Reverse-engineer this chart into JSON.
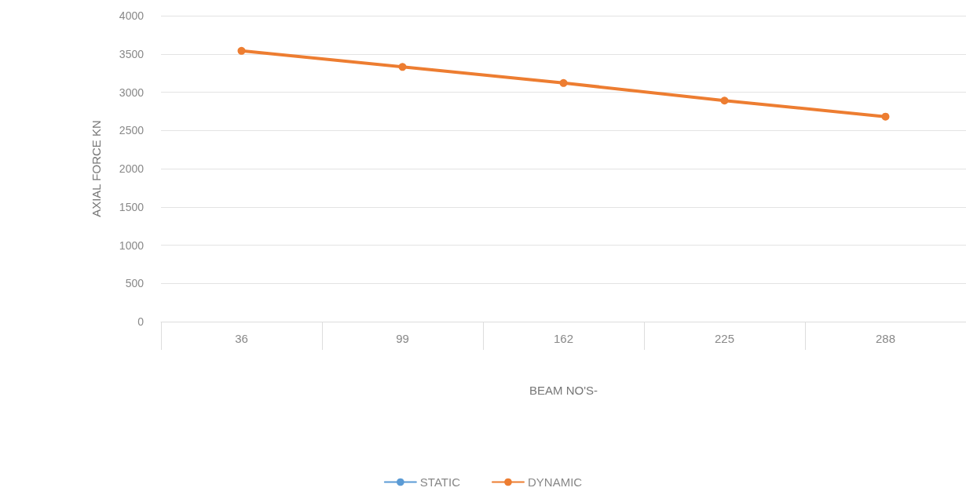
{
  "chart_data": {
    "type": "line",
    "xlabel": "BEAM NO'S-",
    "ylabel": "AXIAL FORCE KN",
    "categories": [
      "36",
      "99",
      "162",
      "225",
      "288"
    ],
    "series": [
      {
        "name": "STATIC",
        "color": "#5b9bd5",
        "values": [
          null,
          null,
          null,
          null,
          null
        ]
      },
      {
        "name": "DYNAMIC",
        "color": "#ed7d31",
        "values": [
          3540,
          3330,
          3120,
          2890,
          2680
        ]
      }
    ],
    "ylim": [
      0,
      4000
    ],
    "yticks": [
      0,
      500,
      1000,
      1500,
      2000,
      2500,
      3000,
      3500,
      4000
    ],
    "grid": "y",
    "legend": "bottom",
    "marker": "circle",
    "line_style": "solid"
  }
}
